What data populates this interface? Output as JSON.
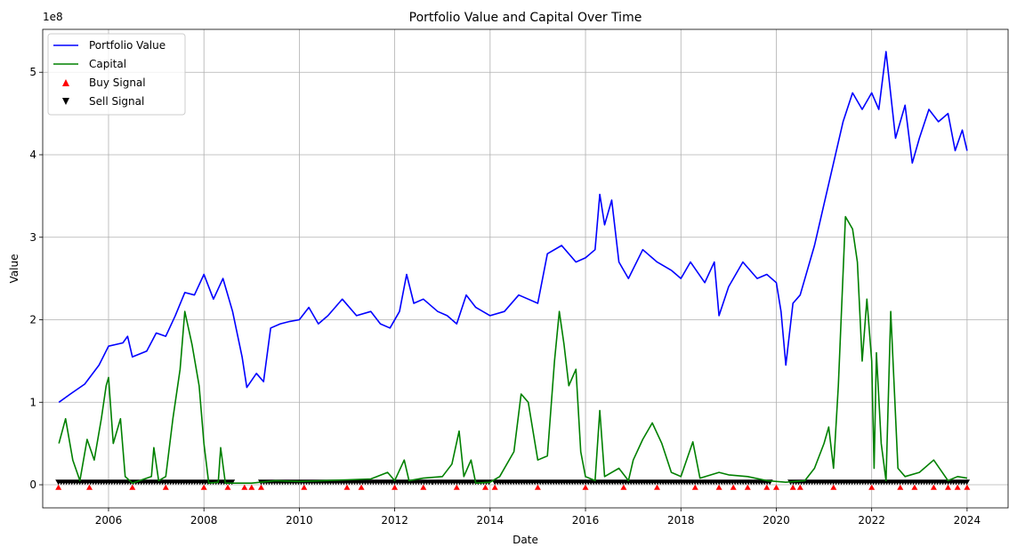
{
  "chart_data": {
    "type": "line",
    "title": "Portfolio Value and Capital Over Time",
    "xlabel": "Date",
    "ylabel": "Value",
    "y_offset_label": "1e8",
    "grid": true,
    "legend_placement": "top-left",
    "x_range": [
      2004.62,
      2024.86
    ],
    "y_range": [
      -0.28,
      5.52
    ],
    "x_ticks": [
      "2006",
      "2008",
      "2010",
      "2012",
      "2014",
      "2016",
      "2018",
      "2020",
      "2022",
      "2024"
    ],
    "y_ticks": [
      "0",
      "1",
      "2",
      "3",
      "4",
      "5"
    ],
    "series": [
      {
        "name": "Portfolio Value",
        "color": "#0000ff",
        "points": [
          [
            2004.96,
            1.0
          ],
          [
            2005.2,
            1.1
          ],
          [
            2005.5,
            1.22
          ],
          [
            2005.8,
            1.45
          ],
          [
            2006.0,
            1.68
          ],
          [
            2006.3,
            1.72
          ],
          [
            2006.4,
            1.8
          ],
          [
            2006.5,
            1.55
          ],
          [
            2006.8,
            1.62
          ],
          [
            2007.0,
            1.84
          ],
          [
            2007.2,
            1.8
          ],
          [
            2007.4,
            2.05
          ],
          [
            2007.6,
            2.33
          ],
          [
            2007.8,
            2.3
          ],
          [
            2008.0,
            2.55
          ],
          [
            2008.2,
            2.25
          ],
          [
            2008.4,
            2.5
          ],
          [
            2008.6,
            2.1
          ],
          [
            2008.8,
            1.55
          ],
          [
            2008.9,
            1.18
          ],
          [
            2009.1,
            1.35
          ],
          [
            2009.25,
            1.25
          ],
          [
            2009.4,
            1.9
          ],
          [
            2009.6,
            1.95
          ],
          [
            2009.8,
            1.98
          ],
          [
            2010.0,
            2.0
          ],
          [
            2010.2,
            2.15
          ],
          [
            2010.4,
            1.95
          ],
          [
            2010.6,
            2.05
          ],
          [
            2010.9,
            2.25
          ],
          [
            2011.2,
            2.05
          ],
          [
            2011.5,
            2.1
          ],
          [
            2011.7,
            1.95
          ],
          [
            2011.9,
            1.9
          ],
          [
            2012.1,
            2.1
          ],
          [
            2012.25,
            2.55
          ],
          [
            2012.4,
            2.2
          ],
          [
            2012.6,
            2.25
          ],
          [
            2012.9,
            2.1
          ],
          [
            2013.1,
            2.05
          ],
          [
            2013.3,
            1.95
          ],
          [
            2013.5,
            2.3
          ],
          [
            2013.7,
            2.15
          ],
          [
            2014.0,
            2.05
          ],
          [
            2014.3,
            2.1
          ],
          [
            2014.6,
            2.3
          ],
          [
            2014.8,
            2.25
          ],
          [
            2015.0,
            2.2
          ],
          [
            2015.2,
            2.8
          ],
          [
            2015.5,
            2.9
          ],
          [
            2015.8,
            2.7
          ],
          [
            2016.0,
            2.75
          ],
          [
            2016.2,
            2.85
          ],
          [
            2016.3,
            3.52
          ],
          [
            2016.4,
            3.15
          ],
          [
            2016.55,
            3.45
          ],
          [
            2016.7,
            2.7
          ],
          [
            2016.9,
            2.5
          ],
          [
            2017.2,
            2.85
          ],
          [
            2017.5,
            2.7
          ],
          [
            2017.8,
            2.6
          ],
          [
            2018.0,
            2.5
          ],
          [
            2018.2,
            2.7
          ],
          [
            2018.5,
            2.45
          ],
          [
            2018.7,
            2.7
          ],
          [
            2018.8,
            2.05
          ],
          [
            2019.0,
            2.4
          ],
          [
            2019.3,
            2.7
          ],
          [
            2019.6,
            2.5
          ],
          [
            2019.8,
            2.55
          ],
          [
            2020.0,
            2.45
          ],
          [
            2020.1,
            2.1
          ],
          [
            2020.2,
            1.45
          ],
          [
            2020.35,
            2.2
          ],
          [
            2020.5,
            2.3
          ],
          [
            2020.8,
            2.9
          ],
          [
            2021.0,
            3.4
          ],
          [
            2021.2,
            3.9
          ],
          [
            2021.4,
            4.4
          ],
          [
            2021.6,
            4.75
          ],
          [
            2021.8,
            4.55
          ],
          [
            2022.0,
            4.75
          ],
          [
            2022.15,
            4.55
          ],
          [
            2022.3,
            5.25
          ],
          [
            2022.5,
            4.2
          ],
          [
            2022.7,
            4.6
          ],
          [
            2022.85,
            3.9
          ],
          [
            2023.0,
            4.2
          ],
          [
            2023.2,
            4.55
          ],
          [
            2023.4,
            4.4
          ],
          [
            2023.6,
            4.5
          ],
          [
            2023.75,
            4.05
          ],
          [
            2023.9,
            4.3
          ],
          [
            2024.0,
            4.05
          ]
        ]
      },
      {
        "name": "Capital",
        "color": "#008000",
        "points": [
          [
            2004.96,
            0.5
          ],
          [
            2005.1,
            0.8
          ],
          [
            2005.25,
            0.3
          ],
          [
            2005.4,
            0.05
          ],
          [
            2005.55,
            0.55
          ],
          [
            2005.7,
            0.3
          ],
          [
            2005.85,
            0.8
          ],
          [
            2005.95,
            1.2
          ],
          [
            2006.0,
            1.3
          ],
          [
            2006.1,
            0.5
          ],
          [
            2006.25,
            0.8
          ],
          [
            2006.35,
            0.1
          ],
          [
            2006.5,
            0.02
          ],
          [
            2006.9,
            0.1
          ],
          [
            2006.95,
            0.45
          ],
          [
            2007.05,
            0.05
          ],
          [
            2007.2,
            0.1
          ],
          [
            2007.35,
            0.8
          ],
          [
            2007.5,
            1.4
          ],
          [
            2007.6,
            2.1
          ],
          [
            2007.75,
            1.7
          ],
          [
            2007.9,
            1.2
          ],
          [
            2008.0,
            0.5
          ],
          [
            2008.1,
            0.02
          ],
          [
            2008.3,
            0.03
          ],
          [
            2008.35,
            0.45
          ],
          [
            2008.45,
            0.02
          ],
          [
            2009.0,
            0.02
          ],
          [
            2009.5,
            0.05
          ],
          [
            2010.0,
            0.04
          ],
          [
            2010.5,
            0.05
          ],
          [
            2011.0,
            0.06
          ],
          [
            2011.5,
            0.07
          ],
          [
            2011.85,
            0.15
          ],
          [
            2012.0,
            0.05
          ],
          [
            2012.2,
            0.3
          ],
          [
            2012.3,
            0.05
          ],
          [
            2012.6,
            0.08
          ],
          [
            2013.0,
            0.1
          ],
          [
            2013.2,
            0.25
          ],
          [
            2013.35,
            0.65
          ],
          [
            2013.45,
            0.1
          ],
          [
            2013.6,
            0.3
          ],
          [
            2013.7,
            0.02
          ],
          [
            2014.0,
            0.03
          ],
          [
            2014.2,
            0.1
          ],
          [
            2014.5,
            0.4
          ],
          [
            2014.65,
            1.1
          ],
          [
            2014.8,
            1.0
          ],
          [
            2015.0,
            0.3
          ],
          [
            2015.2,
            0.35
          ],
          [
            2015.35,
            1.5
          ],
          [
            2015.45,
            2.1
          ],
          [
            2015.55,
            1.7
          ],
          [
            2015.65,
            1.2
          ],
          [
            2015.8,
            1.4
          ],
          [
            2015.9,
            0.4
          ],
          [
            2016.0,
            0.1
          ],
          [
            2016.2,
            0.05
          ],
          [
            2016.3,
            0.9
          ],
          [
            2016.4,
            0.1
          ],
          [
            2016.7,
            0.2
          ],
          [
            2016.9,
            0.05
          ],
          [
            2017.0,
            0.3
          ],
          [
            2017.2,
            0.55
          ],
          [
            2017.4,
            0.75
          ],
          [
            2017.6,
            0.5
          ],
          [
            2017.8,
            0.15
          ],
          [
            2018.0,
            0.1
          ],
          [
            2018.25,
            0.52
          ],
          [
            2018.4,
            0.08
          ],
          [
            2018.8,
            0.15
          ],
          [
            2019.0,
            0.12
          ],
          [
            2019.4,
            0.1
          ],
          [
            2019.8,
            0.05
          ],
          [
            2020.2,
            0.03
          ],
          [
            2020.6,
            0.05
          ],
          [
            2020.8,
            0.2
          ],
          [
            2021.0,
            0.5
          ],
          [
            2021.1,
            0.7
          ],
          [
            2021.2,
            0.2
          ],
          [
            2021.3,
            1.2
          ],
          [
            2021.45,
            3.25
          ],
          [
            2021.6,
            3.1
          ],
          [
            2021.7,
            2.7
          ],
          [
            2021.8,
            1.5
          ],
          [
            2021.9,
            2.25
          ],
          [
            2022.0,
            1.5
          ],
          [
            2022.05,
            0.2
          ],
          [
            2022.1,
            1.6
          ],
          [
            2022.2,
            0.5
          ],
          [
            2022.3,
            0.05
          ],
          [
            2022.4,
            2.1
          ],
          [
            2022.55,
            0.2
          ],
          [
            2022.7,
            0.1
          ],
          [
            2023.0,
            0.15
          ],
          [
            2023.3,
            0.3
          ],
          [
            2023.6,
            0.05
          ],
          [
            2023.8,
            0.1
          ],
          [
            2024.0,
            0.08
          ]
        ]
      },
      {
        "name": "Buy Signal",
        "color": "#ff0000",
        "marker": "triangle-up",
        "y_level": -0.03,
        "x": [
          2004.95,
          2005.6,
          2006.5,
          2007.2,
          2008.0,
          2008.5,
          2008.85,
          2009.0,
          2009.2,
          2010.1,
          2011.0,
          2011.3,
          2012.0,
          2012.6,
          2013.3,
          2013.9,
          2014.1,
          2015.0,
          2016.0,
          2016.8,
          2017.5,
          2018.3,
          2018.8,
          2019.1,
          2019.4,
          2019.8,
          2020.0,
          2020.35,
          2020.5,
          2021.2,
          2022.0,
          2022.6,
          2022.9,
          2023.3,
          2023.6,
          2023.8,
          2024.0
        ]
      },
      {
        "name": "Sell Signal",
        "color": "#000000",
        "marker": "triangle-down",
        "y_level": 0.03,
        "segments": [
          [
            2004.95,
            2008.6
          ],
          [
            2009.2,
            2012.8
          ],
          [
            2012.8,
            2014.0
          ],
          [
            2014.1,
            2019.9
          ],
          [
            2020.3,
            2024.0
          ]
        ]
      }
    ]
  }
}
